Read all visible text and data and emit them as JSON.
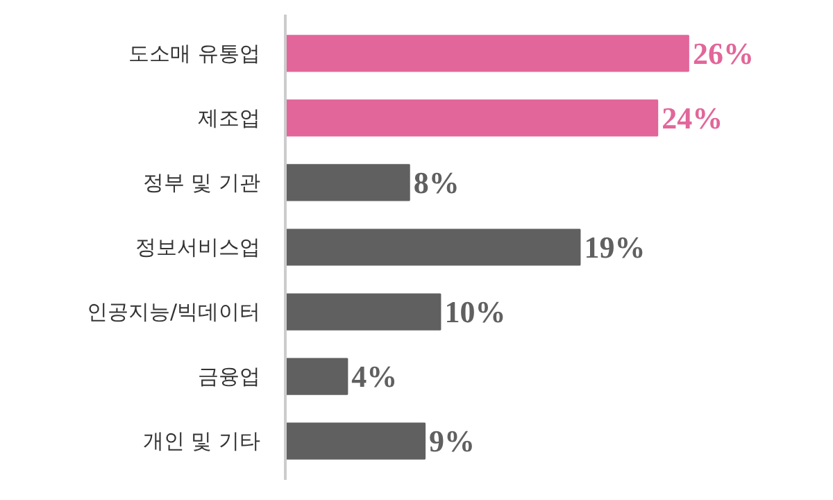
{
  "chart_data": {
    "type": "bar",
    "orientation": "horizontal",
    "categories": [
      "도소매 유통업",
      "제조업",
      "정부 및 기관",
      "정보서비스업",
      "인공지능/빅데이터",
      "금융업",
      "개인 및 기타"
    ],
    "values": [
      26,
      24,
      8,
      19,
      10,
      4,
      9
    ],
    "colors": [
      "#e2669a",
      "#e2669a",
      "#606060",
      "#606060",
      "#606060",
      "#606060",
      "#606060"
    ],
    "value_labels": [
      "26%",
      "24%",
      "8%",
      "19%",
      "10%",
      "4%",
      "9%"
    ],
    "grid": false
  }
}
